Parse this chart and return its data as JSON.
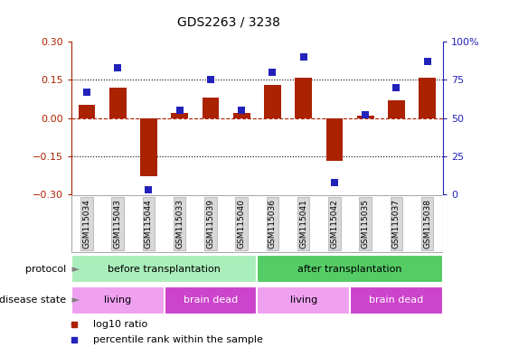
{
  "title": "GDS2263 / 3238",
  "samples": [
    "GSM115034",
    "GSM115043",
    "GSM115044",
    "GSM115033",
    "GSM115039",
    "GSM115040",
    "GSM115036",
    "GSM115041",
    "GSM115042",
    "GSM115035",
    "GSM115037",
    "GSM115038"
  ],
  "log10_ratio": [
    0.05,
    0.12,
    -0.23,
    0.02,
    0.08,
    0.02,
    0.13,
    0.16,
    -0.17,
    0.01,
    0.07,
    0.16
  ],
  "percentile_rank": [
    67,
    83,
    3,
    55,
    75,
    55,
    80,
    90,
    8,
    52,
    70,
    87
  ],
  "ylim": [
    -0.3,
    0.3
  ],
  "yticks": [
    -0.3,
    -0.15,
    0.0,
    0.15,
    0.3
  ],
  "right_ytick_vals": [
    0,
    25,
    50,
    75,
    100
  ],
  "right_ytick_labels": [
    "0",
    "25",
    "50",
    "75",
    "100%"
  ],
  "hlines": [
    0.15,
    0.0,
    -0.15
  ],
  "bar_color": "#aa2200",
  "dot_color": "#2222bb",
  "protocol_before_label": "before transplantation",
  "protocol_after_label": "after transplantation",
  "protocol_before_color": "#aaeebb",
  "protocol_after_color": "#55cc66",
  "living_color": "#f0a0f0",
  "braindead_color": "#cc44cc",
  "living_label": "living",
  "braindead_label": "brain dead",
  "protocol_label": "protocol",
  "disease_label": "disease state",
  "legend_red": "log10 ratio",
  "legend_blue": "percentile rank within the sample",
  "bg_color": "#ffffff",
  "tick_label_bg": "#d8d8d8",
  "tick_label_edge": "#aaaaaa",
  "bar_width": 0.55,
  "dot_size": 35
}
